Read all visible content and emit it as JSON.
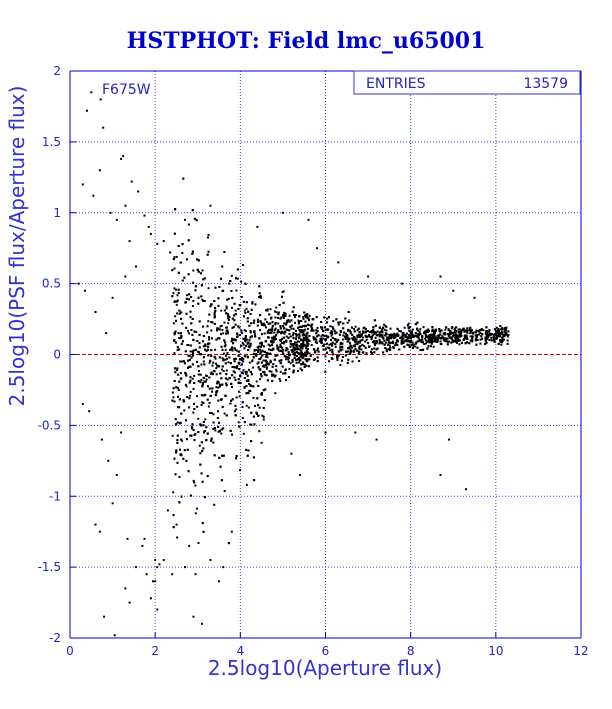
{
  "chart_data": {
    "type": "scatter",
    "title": "HSTPHOT: Field lmc_u65001",
    "xlabel": "2.5log10(Aperture flux)",
    "ylabel": "2.5log10(PSF flux/Aperture flux)",
    "xlim": [
      0,
      12
    ],
    "ylim": [
      -2,
      2
    ],
    "x_ticks": [
      "0",
      "2",
      "4",
      "6",
      "8",
      "10",
      "12"
    ],
    "y_ticks": [
      "-2",
      "-1.5",
      "-1",
      "-0.5",
      "0",
      "0.5",
      "1",
      "1.5",
      "2"
    ],
    "grid": true,
    "reference_line": {
      "y": 0,
      "color": "#cc0000",
      "style": "dashed"
    },
    "filter_label": "F675W",
    "stats": {
      "label": "ENTRIES",
      "value": "13579"
    },
    "series": [
      {
        "points": [
          [
            0.5,
            1.85
          ],
          [
            0.72,
            1.8
          ],
          [
            0.78,
            1.6
          ],
          [
            0.4,
            1.72
          ],
          [
            1.2,
            1.38
          ],
          [
            1.25,
            1.4
          ],
          [
            0.3,
            1.2
          ],
          [
            0.7,
            1.3
          ],
          [
            1.45,
            1.22
          ],
          [
            1.6,
            1.15
          ],
          [
            0.55,
            1.12
          ],
          [
            0.95,
            1.0
          ],
          [
            1.1,
            0.95
          ],
          [
            1.3,
            1.05
          ],
          [
            1.75,
            0.98
          ],
          [
            1.85,
            0.9
          ],
          [
            1.9,
            0.85
          ],
          [
            1.4,
            0.8
          ],
          [
            2.05,
            0.78
          ],
          [
            2.2,
            0.8
          ],
          [
            2.35,
            0.72
          ],
          [
            0.2,
            0.5
          ],
          [
            0.35,
            0.45
          ],
          [
            0.6,
            0.3
          ],
          [
            0.85,
            0.15
          ],
          [
            1.0,
            0.4
          ],
          [
            1.3,
            0.55
          ],
          [
            1.55,
            0.62
          ],
          [
            0.3,
            -0.35
          ],
          [
            0.45,
            -0.4
          ],
          [
            0.75,
            -0.6
          ],
          [
            0.9,
            -0.75
          ],
          [
            1.1,
            -0.85
          ],
          [
            1.2,
            -0.55
          ],
          [
            0.6,
            -1.2
          ],
          [
            0.7,
            -1.25
          ],
          [
            1.0,
            -1.05
          ],
          [
            1.35,
            -1.3
          ],
          [
            1.55,
            -1.5
          ],
          [
            1.7,
            -1.35
          ],
          [
            1.8,
            -1.55
          ],
          [
            1.3,
            -1.65
          ],
          [
            1.4,
            -1.75
          ],
          [
            1.9,
            -1.72
          ],
          [
            2.05,
            -1.8
          ],
          [
            1.95,
            -1.6
          ],
          [
            2.2,
            -1.45
          ],
          [
            2.4,
            -1.55
          ],
          [
            2.7,
            -1.5
          ],
          [
            2.95,
            -1.55
          ],
          [
            3.3,
            -1.45
          ],
          [
            3.5,
            -1.6
          ],
          [
            2.8,
            -1.35
          ],
          [
            2.5,
            -1.2
          ],
          [
            2.3,
            -1.1
          ],
          [
            1.75,
            -1.3
          ],
          [
            0.8,
            -1.85
          ],
          [
            1.05,
            -1.98
          ],
          [
            2.9,
            -1.85
          ],
          [
            3.1,
            -1.9
          ],
          [
            3.6,
            -1.5
          ],
          [
            3.8,
            -1.25
          ],
          [
            2.0,
            -1.45
          ],
          [
            2.05,
            -1.5
          ],
          [
            2.1,
            -1.48
          ],
          [
            2.0,
            -1.6
          ],
          [
            5.6,
            0.95
          ],
          [
            5.8,
            0.75
          ],
          [
            6.3,
            0.65
          ],
          [
            7.0,
            0.55
          ],
          [
            7.8,
            0.5
          ],
          [
            5.2,
            -0.7
          ],
          [
            5.4,
            -0.85
          ],
          [
            6.0,
            -0.55
          ],
          [
            6.7,
            -0.55
          ],
          [
            7.2,
            -0.6
          ],
          [
            8.7,
            -0.85
          ],
          [
            8.9,
            -0.6
          ],
          [
            9.3,
            -0.95
          ],
          [
            8.7,
            0.55
          ],
          [
            9.0,
            0.45
          ],
          [
            9.5,
            0.4
          ],
          [
            5.0,
            1.0
          ],
          [
            4.4,
            0.9
          ],
          [
            3.3,
            1.05
          ],
          [
            2.7,
            0.95
          ]
        ]
      }
    ]
  }
}
